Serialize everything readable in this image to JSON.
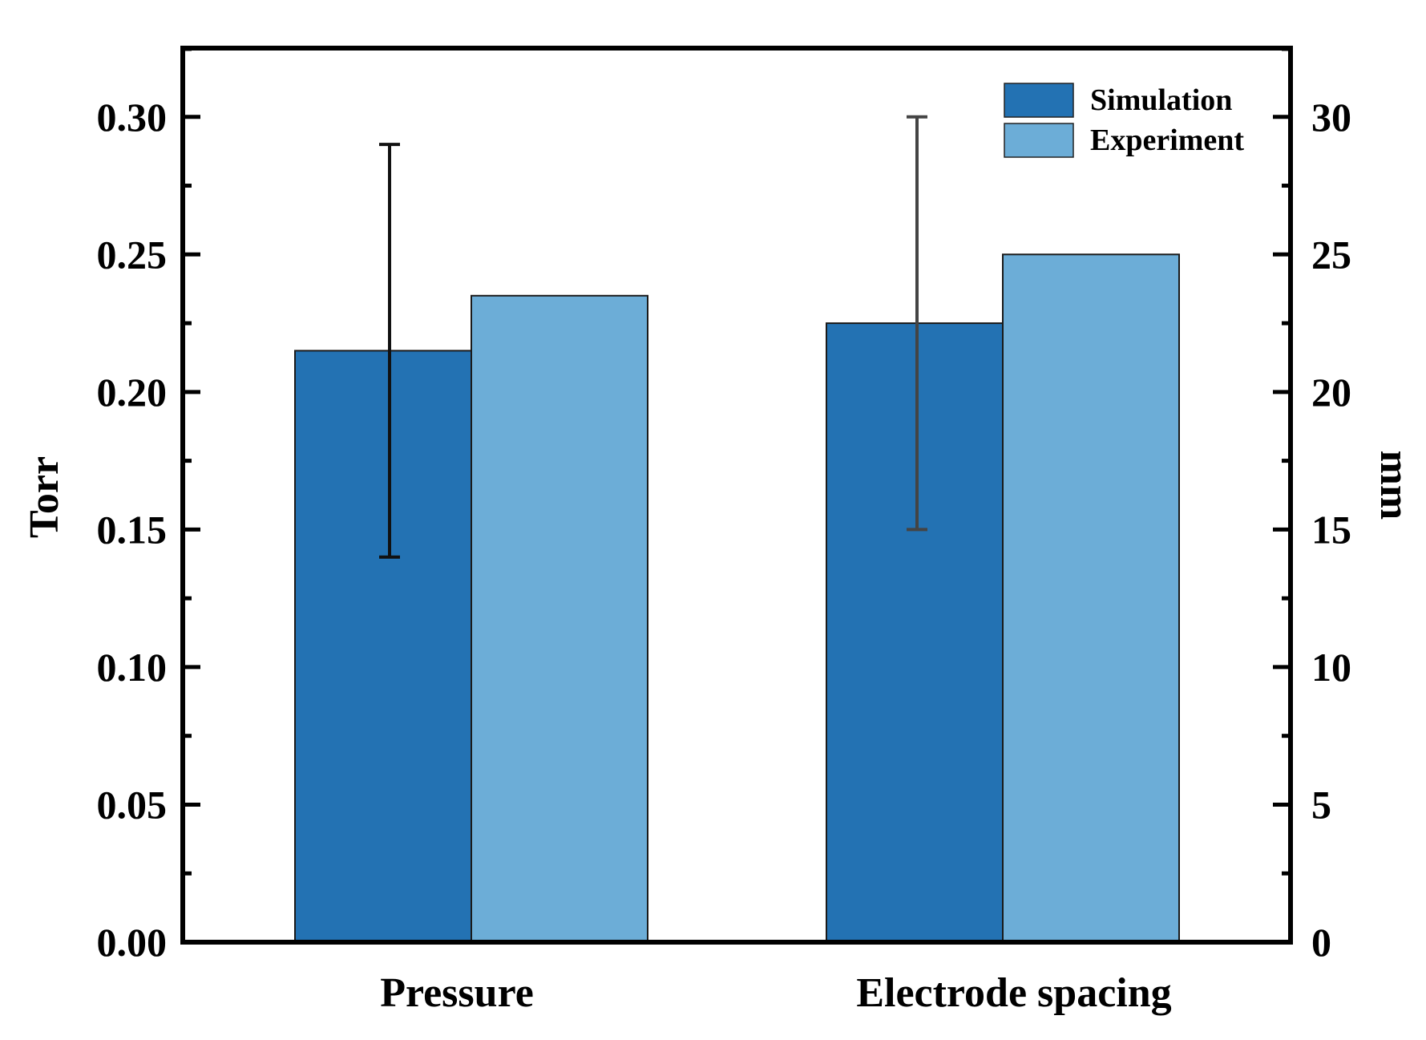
{
  "chart_data": {
    "type": "bar",
    "categories": [
      "Pressure",
      "Electrode spacing"
    ],
    "series": [
      {
        "name": "Simulation",
        "color": "#2372b3",
        "values": [
          0.215,
          22.5
        ],
        "error_low": [
          0.14,
          15
        ],
        "error_high": [
          0.29,
          30
        ]
      },
      {
        "name": "Experiment",
        "color": "#6cadd7",
        "values": [
          0.235,
          25.0
        ]
      }
    ],
    "category_axis": [
      "left",
      "right"
    ],
    "ylabel": "Torr",
    "ylim": [
      0,
      0.325
    ],
    "yticks": [
      "0.00",
      "0.05",
      "0.10",
      "0.15",
      "0.20",
      "0.25",
      "0.30"
    ],
    "y2label": "mm",
    "y2lim": [
      0,
      32.5
    ],
    "y2ticks": [
      "0",
      "5",
      "10",
      "15",
      "20",
      "25",
      "30"
    ],
    "legend_position": "top-right",
    "grid": false
  }
}
